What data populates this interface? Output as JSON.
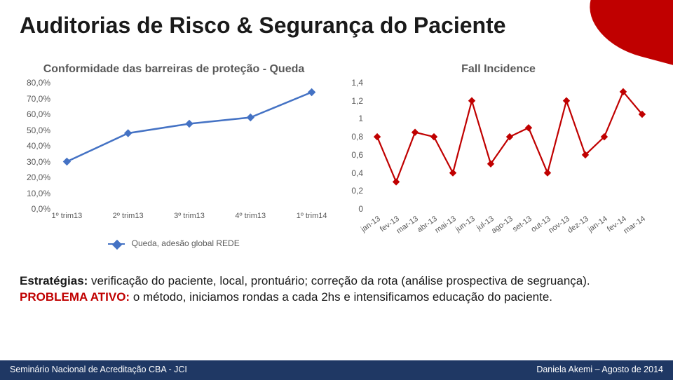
{
  "title": "Auditorias de Risco & Segurança do Paciente",
  "chart_left": {
    "title": "Conformidade das barreiras de proteção - Queda",
    "type": "line",
    "categories": [
      "1º trim13",
      "2º trim13",
      "3º trim13",
      "4º trim13",
      "1º trim14"
    ],
    "values_pct": [
      30.0,
      48.0,
      54.0,
      58.0,
      74.0
    ],
    "ylim": [
      0.0,
      80.0
    ],
    "ytick_step": 10.0,
    "ytick_labels": [
      "0,0%",
      "10,0%",
      "20,0%",
      "30,0%",
      "40,0%",
      "50,0%",
      "60,0%",
      "70,0%",
      "80,0%"
    ],
    "line_color": "#4472c4",
    "marker": "diamond",
    "marker_color": "#4472c4",
    "legend_label": "Queda, adesão global REDE",
    "axis_label_color": "#595959",
    "label_fontsize": 12,
    "title_fontsize": 16,
    "background_color": "#ffffff"
  },
  "chart_right": {
    "title": "Fall Incidence",
    "type": "line",
    "categories": [
      "jan-13",
      "fev-13",
      "mar-13",
      "abr-13",
      "mai-13",
      "jun-13",
      "jul-13",
      "ago-13",
      "set-13",
      "out-13",
      "nov-13",
      "dez-13",
      "jan-14",
      "fev-14",
      "mar-14"
    ],
    "values": [
      0.8,
      0.3,
      0.85,
      0.8,
      0.4,
      1.2,
      0.5,
      0.8,
      0.9,
      0.4,
      1.2,
      0.6,
      0.8,
      1.3,
      1.05
    ],
    "ylim": [
      0,
      1.4
    ],
    "ytick_step": 0.2,
    "ytick_labels": [
      "0",
      "0,2",
      "0,4",
      "0,6",
      "0,8",
      "1",
      "1,2",
      "1,4"
    ],
    "line_color": "#c00000",
    "marker": "diamond",
    "marker_color": "#c00000",
    "axis_label_color": "#595959",
    "label_fontsize": 12,
    "title_fontsize": 16,
    "background_color": "#ffffff"
  },
  "body": {
    "lede": "Estratégias:",
    "lede_text": " verificação do paciente, local, prontuário; correção da rota (análise prospectiva de segruança).",
    "problem_label": "PROBLEMA ATIVO:",
    "problem_text": " o método, iniciamos rondas a cada 2hs e intensificamos educação do paciente."
  },
  "footer": {
    "left": "Seminário Nacional de Acreditação CBA - JCI",
    "right": "Daniela Akemi – Agosto de 2014",
    "bg_color": "#1f3864",
    "text_color": "#ffffff"
  },
  "corner_color": "#c00000"
}
